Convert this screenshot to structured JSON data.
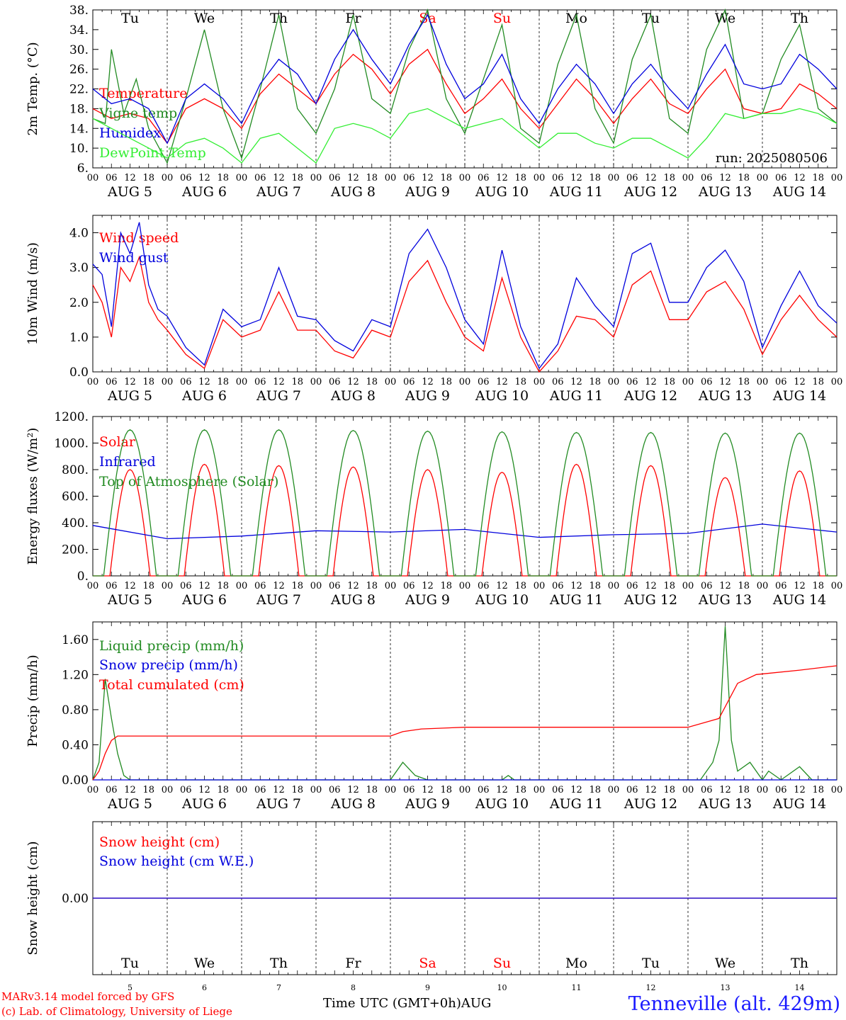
{
  "chart_data": [
    {
      "type": "line",
      "ylabel": "2m Temp. (°C)",
      "ylim": [
        6,
        38
      ],
      "yticks": [
        "38.",
        "34.",
        "30.",
        "26.",
        "22.",
        "18.",
        "14.",
        "10.",
        "6."
      ],
      "run_label": "run: 2025080506",
      "series": [
        {
          "name": "Temperature",
          "color": "#ff0000",
          "x": [
            0,
            6,
            12,
            18,
            24,
            30,
            36,
            42,
            48,
            54,
            60,
            66,
            72,
            78,
            84,
            90,
            96,
            102,
            108,
            114,
            120,
            126,
            132,
            138,
            144,
            150,
            156,
            162,
            168,
            174,
            180,
            186,
            192,
            198,
            204,
            210,
            216,
            222,
            228,
            234,
            240
          ],
          "values": [
            18,
            16,
            17,
            16,
            11,
            18,
            20,
            18,
            14,
            21,
            25,
            22,
            19,
            25,
            29,
            26,
            21,
            27,
            30,
            23,
            17,
            20,
            24,
            18,
            14,
            19,
            24,
            20,
            15,
            20,
            24,
            19,
            17,
            22,
            26,
            18,
            17,
            18,
            23,
            21,
            18
          ]
        },
        {
          "name": "Vigne temp",
          "color": "#228b22",
          "x": [
            0,
            4,
            6,
            10,
            14,
            18,
            24,
            30,
            36,
            42,
            48,
            54,
            60,
            66,
            72,
            78,
            84,
            90,
            96,
            102,
            108,
            114,
            120,
            126,
            132,
            138,
            144,
            150,
            156,
            162,
            168,
            174,
            180,
            186,
            192,
            198,
            204,
            210,
            216,
            222,
            228,
            234,
            240
          ],
          "values": [
            16,
            15,
            30,
            17,
            24,
            14,
            7,
            20,
            34,
            18,
            8,
            22,
            37,
            18,
            13,
            22,
            37,
            20,
            17,
            30,
            38,
            20,
            13,
            24,
            35,
            14,
            11,
            27,
            37,
            18,
            11,
            28,
            37,
            16,
            13,
            30,
            38,
            16,
            17,
            28,
            35,
            18,
            15
          ]
        },
        {
          "name": "Humidex",
          "color": "#0000dd",
          "x": [
            0,
            6,
            12,
            18,
            24,
            30,
            36,
            42,
            48,
            54,
            60,
            66,
            72,
            78,
            84,
            90,
            96,
            102,
            108,
            114,
            120,
            126,
            132,
            138,
            144,
            150,
            156,
            162,
            168,
            174,
            180,
            186,
            192,
            198,
            204,
            210,
            216,
            222,
            228,
            234,
            240
          ],
          "values": [
            22,
            19,
            20,
            18,
            11,
            20,
            23,
            20,
            15,
            23,
            28,
            25,
            19,
            28,
            34,
            28,
            23,
            31,
            37,
            27,
            20,
            23,
            29,
            20,
            15,
            22,
            27,
            23,
            17,
            23,
            27,
            22,
            18,
            25,
            31,
            23,
            22,
            23,
            29,
            26,
            22
          ]
        },
        {
          "name": "DewPoint Temp",
          "color": "#33ee33",
          "x": [
            0,
            6,
            12,
            18,
            24,
            30,
            36,
            42,
            48,
            54,
            60,
            66,
            72,
            78,
            84,
            90,
            96,
            102,
            108,
            114,
            120,
            126,
            132,
            138,
            144,
            150,
            156,
            162,
            168,
            174,
            180,
            186,
            192,
            198,
            204,
            210,
            216,
            222,
            228,
            234,
            240
          ],
          "values": [
            16,
            14,
            12,
            10,
            8,
            11,
            12,
            10,
            7,
            12,
            13,
            10,
            7,
            14,
            15,
            14,
            12,
            17,
            18,
            16,
            14,
            15,
            16,
            13,
            10,
            13,
            13,
            11,
            10,
            12,
            12,
            10,
            8,
            12,
            17,
            16,
            17,
            17,
            18,
            17,
            15
          ]
        }
      ]
    },
    {
      "type": "line",
      "ylabel": "10m Wind (m/s)",
      "ylim": [
        0,
        4.5
      ],
      "yticks": [
        "4.0",
        "3.0",
        "2.0",
        "1.0",
        "0.0"
      ],
      "series": [
        {
          "name": "Wind speed",
          "color": "#ff0000",
          "x": [
            0,
            3,
            6,
            9,
            12,
            15,
            18,
            21,
            24,
            30,
            36,
            42,
            48,
            54,
            60,
            66,
            72,
            78,
            84,
            90,
            96,
            102,
            108,
            114,
            120,
            126,
            132,
            138,
            144,
            150,
            156,
            162,
            168,
            174,
            180,
            186,
            192,
            198,
            204,
            210,
            216,
            222,
            228,
            234,
            240
          ],
          "values": [
            2.5,
            2.0,
            1.0,
            3.0,
            2.6,
            3.3,
            2.0,
            1.5,
            1.2,
            0.5,
            0.1,
            1.5,
            1.0,
            1.2,
            2.3,
            1.2,
            1.2,
            0.6,
            0.4,
            1.2,
            1.0,
            2.6,
            3.2,
            2.0,
            1.0,
            0.6,
            2.7,
            1.0,
            0.0,
            0.6,
            1.6,
            1.5,
            1.0,
            2.5,
            2.9,
            1.5,
            1.5,
            2.3,
            2.6,
            1.8,
            0.5,
            1.5,
            2.2,
            1.5,
            1.0
          ]
        },
        {
          "name": "Wind gust",
          "color": "#0000dd",
          "x": [
            0,
            3,
            6,
            9,
            12,
            15,
            18,
            21,
            24,
            30,
            36,
            42,
            48,
            54,
            60,
            66,
            72,
            78,
            84,
            90,
            96,
            102,
            108,
            114,
            120,
            126,
            132,
            138,
            144,
            150,
            156,
            162,
            168,
            174,
            180,
            186,
            192,
            198,
            204,
            210,
            216,
            222,
            228,
            234,
            240
          ],
          "values": [
            3.1,
            2.8,
            1.3,
            4.0,
            3.4,
            4.3,
            2.5,
            1.8,
            1.6,
            0.7,
            0.2,
            1.8,
            1.3,
            1.5,
            3.0,
            1.6,
            1.5,
            0.9,
            0.6,
            1.5,
            1.3,
            3.4,
            4.1,
            3.0,
            1.5,
            0.8,
            3.5,
            1.3,
            0.1,
            0.8,
            2.7,
            1.9,
            1.3,
            3.4,
            3.7,
            2.0,
            2.0,
            3.0,
            3.5,
            2.6,
            0.7,
            1.9,
            2.9,
            1.9,
            1.4
          ]
        }
      ]
    },
    {
      "type": "line",
      "ylabel": "Energy fluxes (W/m²)",
      "ylim": [
        0,
        1200
      ],
      "yticks": [
        "1200.",
        "1000.",
        "800.",
        "600.",
        "400.",
        "200.",
        "0."
      ],
      "series": [
        {
          "name": "Solar",
          "color": "#ff0000",
          "peaks": [
            800,
            840,
            830,
            820,
            800,
            780,
            840,
            830,
            740,
            790
          ]
        },
        {
          "name": "Infrared",
          "color": "#0000dd",
          "x": [
            0,
            24,
            48,
            72,
            96,
            120,
            144,
            168,
            192,
            216,
            240
          ],
          "values": [
            380,
            280,
            300,
            340,
            330,
            350,
            290,
            310,
            320,
            390,
            330
          ]
        },
        {
          "name": "Top of Atmosphere (Solar)",
          "color": "#228b22",
          "peaks": [
            1100,
            1100,
            1100,
            1095,
            1090,
            1085,
            1080,
            1080,
            1075,
            1075
          ]
        }
      ]
    },
    {
      "type": "line",
      "ylabel": "Precip (mm/h)",
      "ylim": [
        0,
        1.8
      ],
      "yticks": [
        "1.60",
        "1.20",
        "0.80",
        "0.40",
        "0.00"
      ],
      "series": [
        {
          "name": "Liquid precip (mm/h)",
          "color": "#228b22",
          "x": [
            0,
            2,
            4,
            6,
            8,
            10,
            12,
            96,
            100,
            104,
            108,
            132,
            134,
            136,
            196,
            200,
            202,
            204,
            206,
            208,
            212,
            216,
            218,
            222,
            228,
            232,
            240
          ],
          "values": [
            0,
            0.2,
            1.15,
            0.7,
            0.3,
            0.05,
            0,
            0,
            0.2,
            0.05,
            0,
            0,
            0.05,
            0,
            0,
            0.2,
            0.45,
            1.75,
            0.45,
            0.1,
            0.2,
            0,
            0.1,
            0,
            0.15,
            0,
            0
          ]
        },
        {
          "name": "Snow precip (mm/h)",
          "color": "#0000dd",
          "x": [
            0,
            240
          ],
          "values": [
            0,
            0
          ]
        },
        {
          "name": "Total cumulated (cm)",
          "color": "#ff0000",
          "x": [
            0,
            2,
            4,
            6,
            8,
            10,
            96,
            100,
            106,
            120,
            192,
            202,
            208,
            214,
            228,
            240
          ],
          "values": [
            0,
            0.1,
            0.3,
            0.45,
            0.5,
            0.5,
            0.5,
            0.55,
            0.58,
            0.6,
            0.6,
            0.7,
            1.1,
            1.2,
            1.25,
            1.3
          ]
        }
      ]
    },
    {
      "type": "line",
      "ylabel": "Snow height (cm)",
      "yticks": [
        "0.00"
      ],
      "series": [
        {
          "name": "Snow height (cm)",
          "color": "#ff0000",
          "x": [
            0,
            240
          ],
          "values": [
            0,
            0
          ]
        },
        {
          "name": "Snow height (cm W.E.)",
          "color": "#0000dd",
          "x": [
            0,
            240
          ],
          "values": [
            0,
            0
          ]
        }
      ]
    }
  ],
  "days": [
    {
      "abbr": "Tu",
      "date": "AUG 5",
      "num": "5",
      "color": "#000000"
    },
    {
      "abbr": "We",
      "date": "AUG 6",
      "num": "6",
      "color": "#000000"
    },
    {
      "abbr": "Th",
      "date": "AUG 7",
      "num": "7",
      "color": "#000000"
    },
    {
      "abbr": "Fr",
      "date": "AUG 8",
      "num": "8",
      "color": "#000000"
    },
    {
      "abbr": "Sa",
      "date": "AUG 9",
      "num": "9",
      "color": "#ff0000"
    },
    {
      "abbr": "Su",
      "date": "AUG 10",
      "num": "10",
      "color": "#ff0000"
    },
    {
      "abbr": "Mo",
      "date": "AUG 11",
      "num": "11",
      "color": "#000000"
    },
    {
      "abbr": "Tu",
      "date": "AUG 12",
      "num": "12",
      "color": "#000000"
    },
    {
      "abbr": "We",
      "date": "AUG 13",
      "num": "13",
      "color": "#000000"
    },
    {
      "abbr": "Th",
      "date": "AUG 14",
      "num": "14",
      "color": "#000000"
    }
  ],
  "hour_ticks": [
    "00",
    "06",
    "12",
    "18"
  ],
  "final_tick": "00",
  "footer": {
    "model": "MARv3.14 model forced by GFS",
    "copyright": "(c) Lab. of Climatology, University of Liege",
    "axis_title": "Time UTC (GMT+0h)AUG",
    "location": "Tenneville (alt. 429m)"
  }
}
